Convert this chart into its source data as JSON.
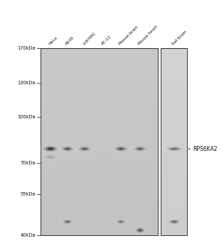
{
  "lane_labels": [
    "HeLa",
    "A549",
    "U-87MG",
    "PC-12",
    "Mouse brain",
    "Mouse heart",
    "Rat brain"
  ],
  "mw_markers": [
    "170kDa",
    "130kDa",
    "100kDa",
    "70kDa",
    "55kDa",
    "40kDa"
  ],
  "mw_values": [
    170,
    130,
    100,
    70,
    55,
    40
  ],
  "gene_label": "RPS6KA2",
  "figure_bg": "#ffffff",
  "gel_bg": 210,
  "panel1_bg": 195,
  "panel2_bg": 205
}
